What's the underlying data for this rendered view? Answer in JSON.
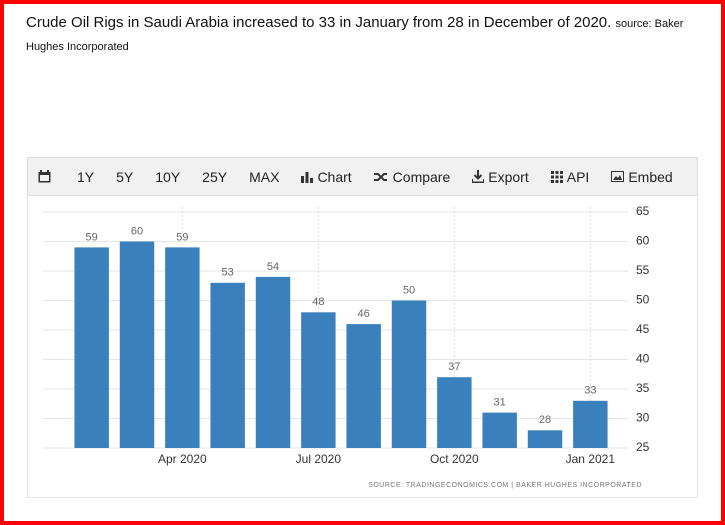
{
  "header": {
    "headline": "Crude Oil Rigs in Saudi Arabia increased to 33 in January from 28 in December of 2020.",
    "source": "source: Baker Hughes Incorporated"
  },
  "toolbar": [
    "1Y",
    "5Y",
    "10Y",
    "25Y",
    "MAX",
    "Chart",
    "Compare",
    "Export",
    "API",
    "Embed"
  ],
  "chart_data": {
    "type": "bar",
    "categories": [
      null,
      null,
      "Apr 2020",
      null,
      null,
      "Jul 2020",
      null,
      null,
      "Oct 2020",
      null,
      null,
      "Jan 2021"
    ],
    "values": [
      59,
      60,
      59,
      53,
      54,
      48,
      46,
      50,
      37,
      31,
      28,
      33
    ],
    "color": "#3a80bd",
    "ylim": [
      25,
      65
    ],
    "yticks": [
      25,
      30,
      35,
      40,
      45,
      50,
      55,
      60,
      65
    ],
    "grid": true,
    "source": "SOURCE: TRADINGECONOMICS.COM | BAKER HUGHES INCORPORATED"
  }
}
